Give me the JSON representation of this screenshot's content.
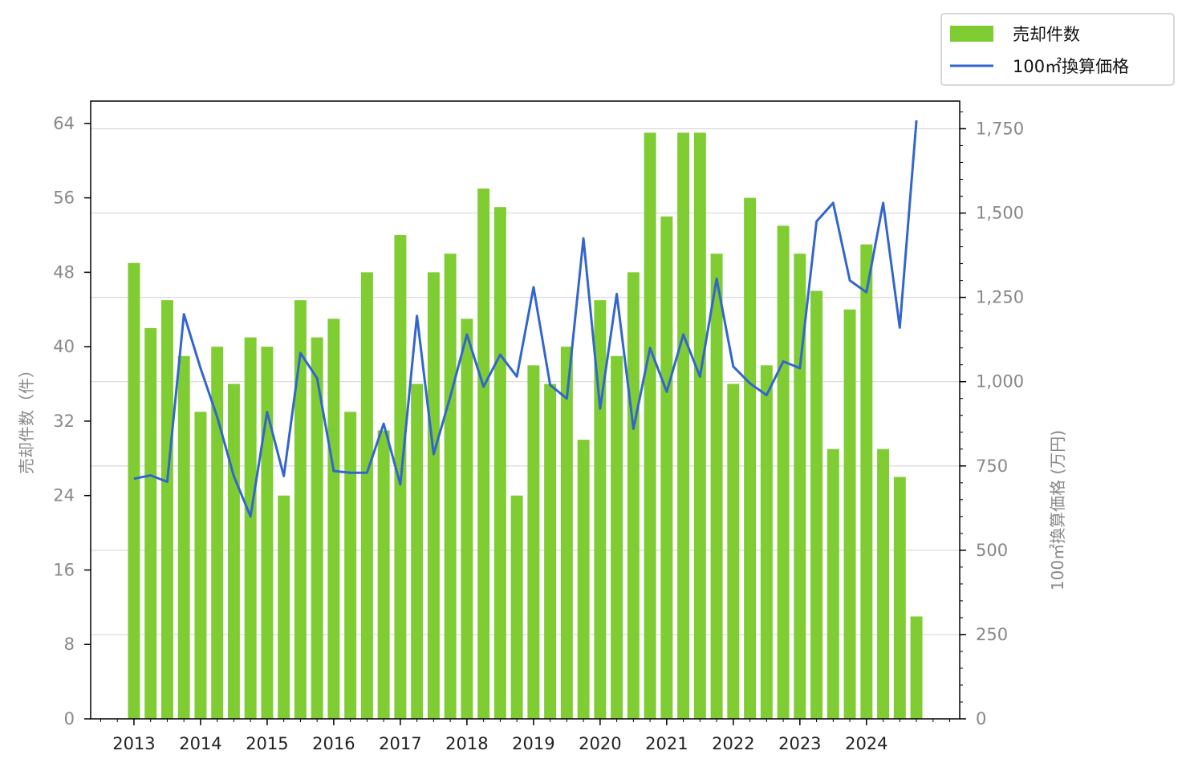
{
  "chart_data": {
    "type": "bar",
    "x_tick_labels": [
      "2013",
      "2014",
      "2015",
      "2016",
      "2017",
      "2018",
      "2019",
      "2020",
      "2021",
      "2022",
      "2023",
      "2024"
    ],
    "ylabel_left": "売却件数（件）",
    "ylabel_right": "100㎡換算価格 (万円)",
    "y_left_ticks": [
      "0",
      "8",
      "16",
      "24",
      "32",
      "40",
      "48",
      "56",
      "64"
    ],
    "y_right_ticks": [
      "0",
      "250",
      "500",
      "750",
      "1,000",
      "1,250",
      "1,500",
      "1,750"
    ],
    "y_left_lim": [
      0,
      66.4
    ],
    "y_right_lim": [
      0,
      1832
    ],
    "x_lim": [
      2012.35,
      2025.4
    ],
    "grid": "horizontal",
    "legend_position": "top-right",
    "colors": {
      "bar": "#7fcc33",
      "line": "#3366cc",
      "grid": "#d9d9d9"
    },
    "series": [
      {
        "name": "売却件数",
        "type": "bar",
        "axis": "left",
        "x": [
          2013.0,
          2013.25,
          2013.5,
          2013.75,
          2014.0,
          2014.25,
          2014.5,
          2014.75,
          2015.0,
          2015.25,
          2015.5,
          2015.75,
          2016.0,
          2016.25,
          2016.5,
          2016.75,
          2017.0,
          2017.25,
          2017.5,
          2017.75,
          2018.0,
          2018.25,
          2018.5,
          2018.75,
          2019.0,
          2019.25,
          2019.5,
          2019.75,
          2020.0,
          2020.25,
          2020.5,
          2020.75,
          2021.0,
          2021.25,
          2021.5,
          2021.75,
          2022.0,
          2022.25,
          2022.5,
          2022.75,
          2023.0,
          2023.25,
          2023.5,
          2023.75,
          2024.0,
          2024.25,
          2024.5,
          2024.75
        ],
        "values": [
          49,
          42,
          45,
          39,
          33,
          40,
          36,
          41,
          40,
          24,
          45,
          41,
          43,
          33,
          48,
          31,
          52,
          36,
          48,
          50,
          43,
          57,
          55,
          24,
          38,
          36,
          40,
          30,
          45,
          39,
          48,
          63,
          54,
          63,
          63,
          50,
          36,
          56,
          38,
          53,
          50,
          46,
          29,
          44,
          51,
          29,
          26,
          11
        ]
      },
      {
        "name": "100㎡換算価格",
        "type": "line",
        "axis": "right",
        "x": [
          2013.0,
          2013.25,
          2013.5,
          2013.75,
          2014.0,
          2014.25,
          2014.5,
          2014.75,
          2015.0,
          2015.25,
          2015.5,
          2015.75,
          2016.0,
          2016.25,
          2016.5,
          2016.75,
          2017.0,
          2017.25,
          2017.5,
          2017.75,
          2018.0,
          2018.25,
          2018.5,
          2018.75,
          2019.0,
          2019.25,
          2019.5,
          2019.75,
          2020.0,
          2020.25,
          2020.5,
          2020.75,
          2021.0,
          2021.25,
          2021.5,
          2021.75,
          2022.0,
          2022.25,
          2022.5,
          2022.75,
          2023.0,
          2023.25,
          2023.5,
          2023.75,
          2024.0,
          2024.25,
          2024.5,
          2024.75
        ],
        "values": [
          712,
          722,
          703,
          1200,
          1040,
          895,
          720,
          600,
          910,
          720,
          1085,
          1010,
          735,
          730,
          730,
          875,
          695,
          1195,
          785,
          955,
          1140,
          985,
          1080,
          1015,
          1280,
          990,
          950,
          1425,
          920,
          1260,
          860,
          1100,
          970,
          1140,
          1015,
          1305,
          1045,
          995,
          960,
          1060,
          1040,
          1475,
          1530,
          1300,
          1265,
          1530,
          1160,
          1775
        ]
      }
    ]
  }
}
